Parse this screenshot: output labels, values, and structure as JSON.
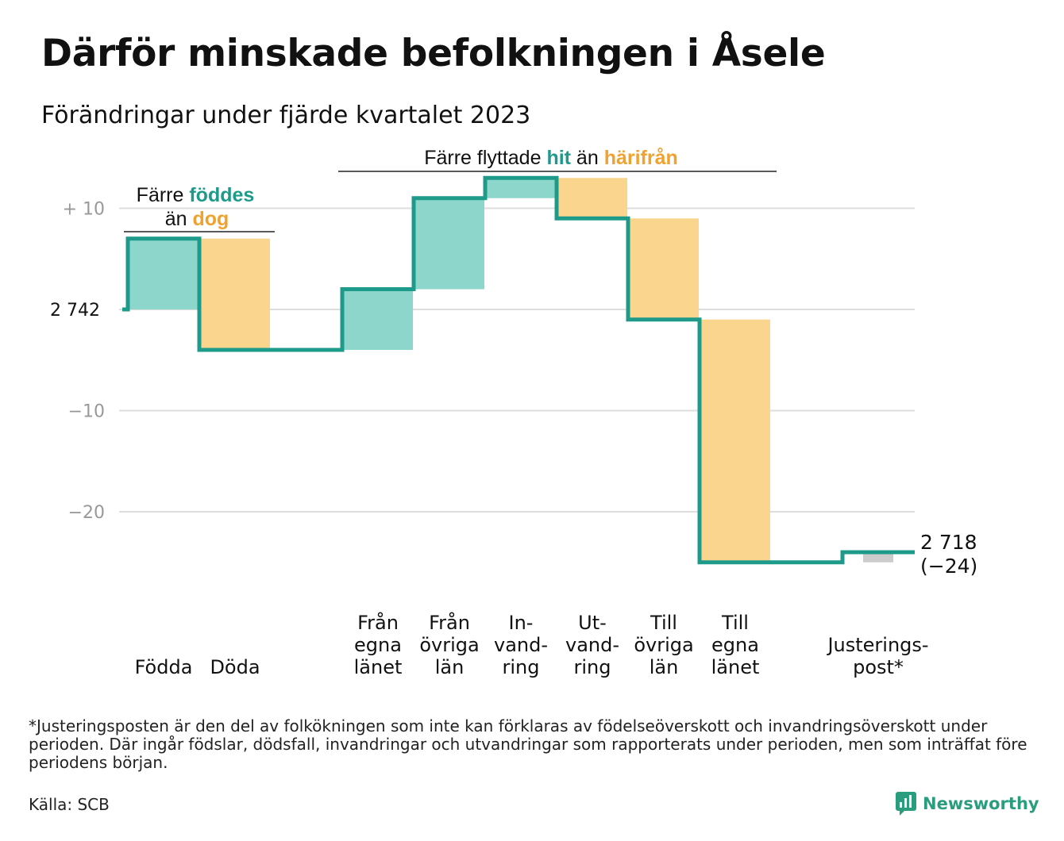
{
  "title": "Därför minskade befolkningen i Åsele",
  "subtitle": "Förändringar under fjärde kvartalet 2023",
  "colors": {
    "line": "#1e9a8a",
    "increase": "#8dd6cc",
    "decrease": "#fad58e",
    "adjustment": "#cccccc",
    "teal_text": "#1e9a8a",
    "orange_text": "#f0a22f",
    "grid": "#dddddd",
    "tick_text": "#999999"
  },
  "annotations": {
    "births_deaths": {
      "line1_prefix": "Färre",
      "line1_highlight": "föddes",
      "line2_prefix": "än",
      "line2_highlight": "dog"
    },
    "migration": {
      "prefix": "Färre flyttade",
      "highlight1": "hit",
      "middle": "än",
      "highlight2": "härifrån"
    }
  },
  "start_label": "2 742",
  "end_label_value": "2 718",
  "end_label_change": "(−24)",
  "chart_data": {
    "type": "waterfall",
    "start_value": 2742,
    "end_value": 2718,
    "y_tick_labels": [
      "+  10",
      "−10",
      "−20"
    ],
    "y_ticks": [
      10,
      -10,
      -20
    ],
    "ylim": [
      -26,
      13
    ],
    "steps": [
      {
        "label_lines": [
          "Födda"
        ],
        "change": 7,
        "kind": "increase"
      },
      {
        "label_lines": [
          "Döda"
        ],
        "change": -11,
        "kind": "decrease"
      },
      {
        "label_lines": [
          "Från",
          "egna",
          "länet"
        ],
        "change": 6,
        "kind": "increase"
      },
      {
        "label_lines": [
          "Från",
          "övriga",
          "län"
        ],
        "change": 9,
        "kind": "increase"
      },
      {
        "label_lines": [
          "In-",
          "vand-",
          "ring"
        ],
        "change": 2,
        "kind": "increase"
      },
      {
        "label_lines": [
          "Ut-",
          "vand-",
          "ring"
        ],
        "change": -4,
        "kind": "decrease"
      },
      {
        "label_lines": [
          "Till",
          "övriga",
          "län"
        ],
        "change": -10,
        "kind": "decrease"
      },
      {
        "label_lines": [
          "Till",
          "egna",
          "länet"
        ],
        "change": -24,
        "kind": "decrease"
      },
      {
        "label_lines": [
          "Justerings-",
          "post*"
        ],
        "change": 1,
        "kind": "adjustment"
      }
    ]
  },
  "footnote": "*Justeringsposten är den del av folkökningen som inte kan förklaras av födelseöverskott och invandringsöverskott under perioden. Där ingår födslar, dödsfall, invandringar och utvandringar som rapporterats under perioden, men som inträffat före periodens början.",
  "source": "Källa: SCB",
  "brand": "Newsworthy"
}
